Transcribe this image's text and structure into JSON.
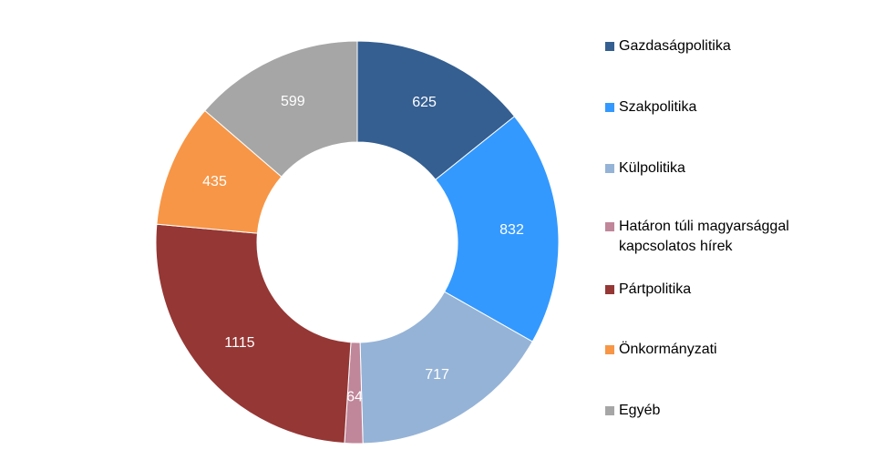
{
  "chart_data": {
    "type": "pie",
    "subtype": "donut",
    "title": "",
    "legend_position": "right",
    "slices": [
      {
        "label": "Gazdaságpolitika",
        "value": 625,
        "value_label": "625",
        "color": "#355f91"
      },
      {
        "label": "Szakpolitika",
        "value": 832,
        "value_label": "832",
        "color": "#3399ff"
      },
      {
        "label": "Külpolitika",
        "value": 717,
        "value_label": "717",
        "color": "#95b3d7"
      },
      {
        "label": "Határon túli magyarsággal kapcsolatos hírek",
        "value": 64,
        "value_label": "64",
        "color": "#c0869a"
      },
      {
        "label": "Pártpolitika",
        "value": 1115,
        "value_label": "1115",
        "color": "#953735"
      },
      {
        "label": "Önkormányzati",
        "value": 435,
        "value_label": "435",
        "color": "#f79646"
      },
      {
        "label": "Egyéb",
        "value": 599,
        "value_label": "599",
        "color": "#a6a6a6"
      }
    ]
  }
}
